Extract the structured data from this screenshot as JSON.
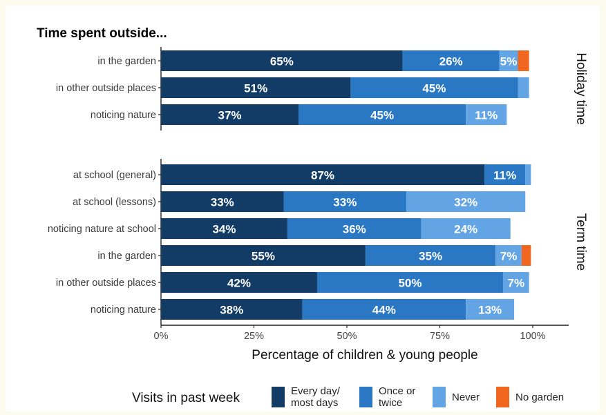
{
  "chart_data": {
    "type": "bar",
    "orientation": "horizontal",
    "stacked": true,
    "title": "Time spent outside...",
    "xlabel": "Percentage of children & young people",
    "xlim": [
      0,
      100
    ],
    "x_ticks": [
      "0%",
      "25%",
      "50%",
      "75%",
      "100%"
    ],
    "legend": {
      "title": "Visits in past week",
      "placement": "bottom",
      "entries": [
        {
          "lines": [
            "Every day/",
            "most days"
          ],
          "color": "#123c66"
        },
        {
          "lines": [
            "Once or",
            "twice"
          ],
          "color": "#2a78c4"
        },
        {
          "lines": [
            "Never"
          ],
          "color": "#63a4e4"
        },
        {
          "lines": [
            "No garden"
          ],
          "color": "#f0661f"
        }
      ]
    },
    "series_names": [
      "Every day/most days",
      "Once or twice",
      "Never",
      "No garden"
    ],
    "series_colors": [
      "#123c66",
      "#2a78c4",
      "#63a4e4",
      "#f0661f"
    ],
    "panels": [
      {
        "facet_label": "Holiday time",
        "rows": [
          {
            "label": "in the garden",
            "values": [
              65,
              26,
              5,
              3
            ],
            "labels": [
              "65%",
              "26%",
              "5%",
              ""
            ]
          },
          {
            "label": "in other outside places",
            "values": [
              51,
              45,
              3,
              0
            ],
            "labels": [
              "51%",
              "45%",
              "",
              ""
            ]
          },
          {
            "label": "noticing nature",
            "values": [
              37,
              45,
              11,
              0
            ],
            "labels": [
              "37%",
              "45%",
              "11%",
              ""
            ]
          }
        ]
      },
      {
        "facet_label": "Term time",
        "rows": [
          {
            "label": "at school (general)",
            "values": [
              87,
              11,
              1.5,
              0
            ],
            "labels": [
              "87%",
              "11%",
              "",
              ""
            ]
          },
          {
            "label": "at school (lessons)",
            "values": [
              33,
              33,
              32,
              0
            ],
            "labels": [
              "33%",
              "33%",
              "32%",
              ""
            ]
          },
          {
            "label": "noticing nature at school",
            "values": [
              34,
              36,
              24,
              0
            ],
            "labels": [
              "34%",
              "36%",
              "24%",
              ""
            ]
          },
          {
            "label": "in the garden",
            "values": [
              55,
              35,
              7,
              2.5
            ],
            "labels": [
              "55%",
              "35%",
              "7%",
              ""
            ]
          },
          {
            "label": "in other outside places",
            "values": [
              42,
              50,
              7,
              0
            ],
            "labels": [
              "42%",
              "50%",
              "7%",
              ""
            ]
          },
          {
            "label": "noticing nature",
            "values": [
              38,
              44,
              13,
              0
            ],
            "labels": [
              "38%",
              "44%",
              "13%",
              ""
            ]
          }
        ]
      }
    ]
  }
}
